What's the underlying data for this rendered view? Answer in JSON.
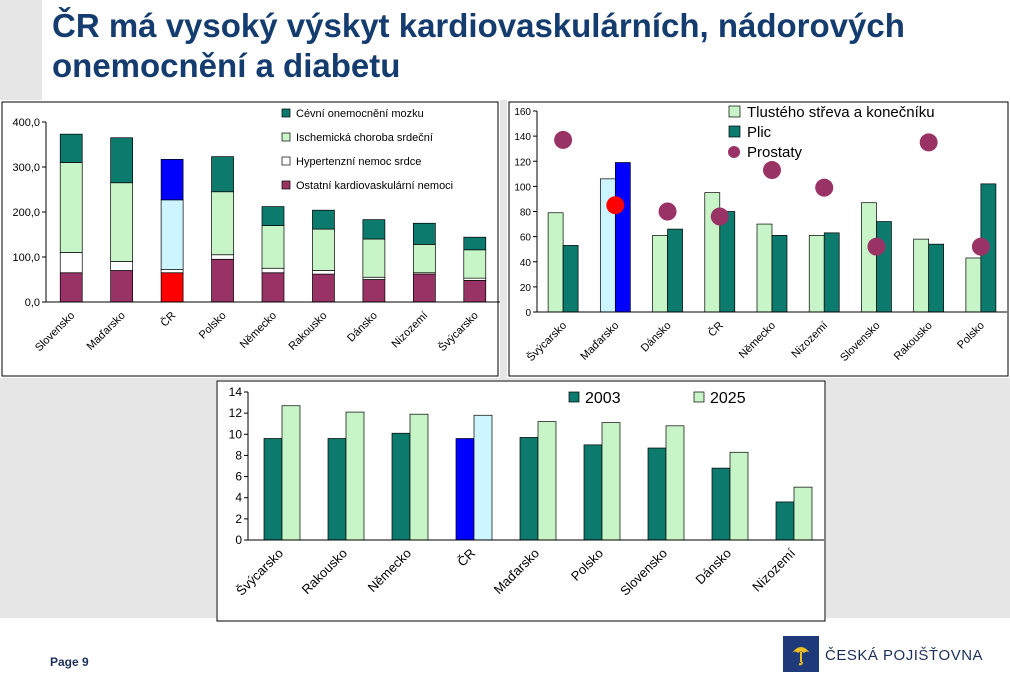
{
  "title": "ČR má vysoký výskyt kardiovaskulárních, nádorových onemocnění a diabetu",
  "footer": {
    "page_label": "Page 9"
  },
  "logo": {
    "text": "ČESKÁ POJIŠŤOVNA"
  },
  "colors": {
    "teal": "#0d7a6e",
    "light_green": "#c8f5c8",
    "white_fill": "#ffffff",
    "maroon": "#993366",
    "highlight_red": "#ff0000",
    "highlight_blue": "#0000ff",
    "highlight_light_blue": "#ccf5ff",
    "title_blue": "#143c6e",
    "logo_blue": "#1f3a7a",
    "logo_yellow": "#f0c020"
  },
  "chart_data": [
    {
      "type": "bar",
      "stacked": true,
      "categories": [
        "Slovensko",
        "Maďarsko",
        "ČR",
        "Polsko",
        "Německo",
        "Rakousko",
        "Dánsko",
        "Nizozemí",
        "Švýcarsko"
      ],
      "series": [
        {
          "name": "Ostatní kardiovaskulární nemoci",
          "values": [
            65,
            70,
            65,
            95,
            65,
            62,
            50,
            62,
            48
          ]
        },
        {
          "name": "Hypertenzní nemoc srdce",
          "values": [
            45,
            20,
            7,
            10,
            10,
            8,
            5,
            3,
            5
          ]
        },
        {
          "name": "Ischemická choroba srdeční",
          "values": [
            200,
            175,
            155,
            140,
            95,
            92,
            85,
            63,
            63
          ]
        },
        {
          "name": "Cévní onemocnění mozku",
          "values": [
            63,
            100,
            90,
            78,
            42,
            42,
            43,
            47,
            28
          ]
        }
      ],
      "ylim": [
        0,
        400
      ],
      "yticks": [
        "0,0",
        "100,0",
        "200,0",
        "300,0",
        "400,0"
      ],
      "legend_position": "top-right",
      "highlight_category": "ČR",
      "grid": false
    },
    {
      "type": "bar",
      "categories": [
        "Švýcarsko",
        "Maďarsko",
        "Dánsko",
        "ČR",
        "Německo",
        "Nizozemí",
        "Slovensko",
        "Rakousko",
        "Polsko"
      ],
      "series": [
        {
          "name": "Tlustého střeva a konečníku",
          "type": "bar",
          "values": [
            79,
            106,
            61,
            95,
            70,
            61,
            87,
            58,
            43
          ]
        },
        {
          "name": "Plic",
          "type": "bar",
          "values": [
            53,
            119,
            66,
            80,
            61,
            63,
            72,
            54,
            102
          ]
        },
        {
          "name": "Prostaty",
          "type": "scatter",
          "values": [
            137,
            85,
            80,
            76,
            113,
            99,
            52,
            135,
            52
          ]
        }
      ],
      "ylim": [
        0,
        160
      ],
      "yticks": [
        "0",
        "20",
        "40",
        "60",
        "80",
        "100",
        "120",
        "140",
        "160"
      ],
      "legend_position": "top",
      "highlight_category": "Maďarsko",
      "grid": false
    },
    {
      "type": "bar",
      "categories": [
        "Švýcarsko",
        "Rakousko",
        "Německo",
        "ČR",
        "Maďarsko",
        "Polsko",
        "Slovensko",
        "Dánsko",
        "Nizozemí"
      ],
      "series": [
        {
          "name": "2003",
          "values": [
            9.6,
            9.6,
            10.1,
            9.6,
            9.7,
            9.0,
            8.7,
            6.8,
            3.6
          ]
        },
        {
          "name": "2025",
          "values": [
            12.7,
            12.1,
            11.9,
            11.8,
            11.2,
            11.1,
            10.8,
            8.3,
            5.0
          ]
        }
      ],
      "ylim": [
        0,
        14
      ],
      "yticks": [
        "0",
        "2",
        "4",
        "6",
        "8",
        "10",
        "12",
        "14"
      ],
      "legend_position": "top-right",
      "highlight_category": "ČR",
      "grid": false
    }
  ]
}
